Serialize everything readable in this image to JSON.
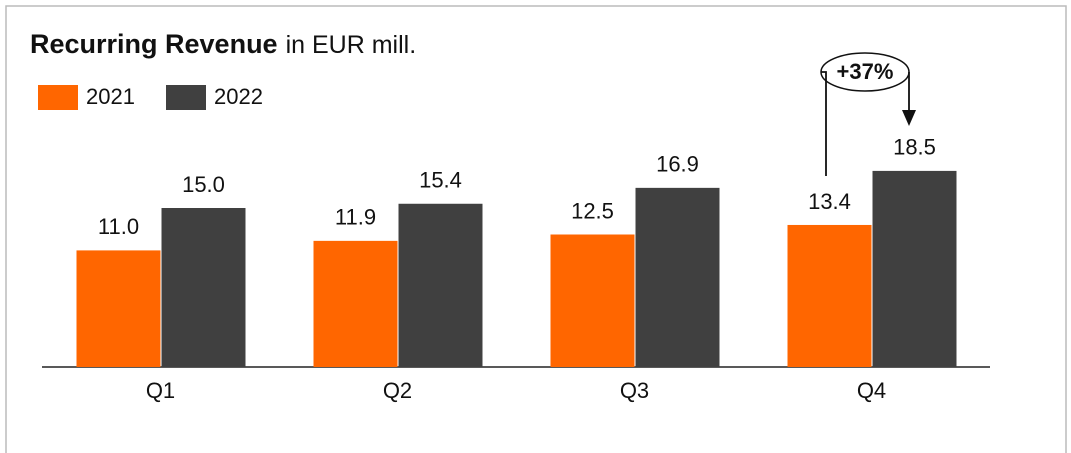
{
  "chart_data": {
    "type": "bar",
    "title": "Recurring Revenue",
    "subtitle": "in EUR mill.",
    "categories": [
      "Q1",
      "Q2",
      "Q3",
      "Q4"
    ],
    "series": [
      {
        "name": "2021",
        "color": "#ff6600",
        "values": [
          11.0,
          11.9,
          12.5,
          13.4
        ],
        "value_labels": [
          "11.0",
          "11.9",
          "12.5",
          "13.4"
        ]
      },
      {
        "name": "2022",
        "color": "#404040",
        "values": [
          15.0,
          15.4,
          16.9,
          18.5
        ],
        "value_labels": [
          "15.0",
          "15.4",
          "16.9",
          "18.5"
        ]
      }
    ],
    "ylim": [
      0,
      20
    ],
    "annotations": [
      "+37%"
    ]
  }
}
